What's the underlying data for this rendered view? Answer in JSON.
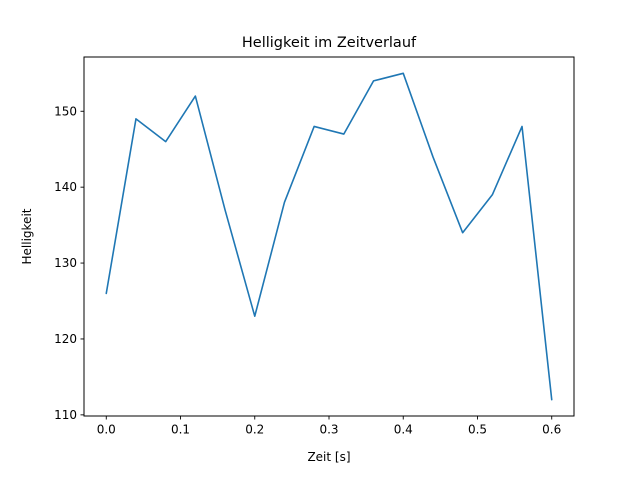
{
  "window": {
    "background": "#ffffff"
  },
  "chart_data": {
    "type": "line",
    "title": "Helligkeit im Zeitverlauf",
    "xlabel": "Zeit [s]",
    "ylabel": "Helligkeit",
    "x": [
      0.0,
      0.04,
      0.08,
      0.12,
      0.16,
      0.2,
      0.24,
      0.28,
      0.32,
      0.36,
      0.4,
      0.44,
      0.48,
      0.52,
      0.56,
      0.6
    ],
    "values": [
      126,
      149,
      146,
      152,
      137,
      123,
      138,
      148,
      147,
      154,
      155,
      144,
      134,
      139,
      148,
      112
    ],
    "xticks": [
      0.0,
      0.1,
      0.2,
      0.3,
      0.4,
      0.5,
      0.6
    ],
    "xtick_labels": [
      "0.0",
      "0.1",
      "0.2",
      "0.3",
      "0.4",
      "0.5",
      "0.6"
    ],
    "yticks": [
      110,
      120,
      130,
      140,
      150
    ],
    "ytick_labels": [
      "110",
      "120",
      "130",
      "140",
      "150"
    ],
    "xlim": [
      -0.03,
      0.63
    ],
    "ylim": [
      109.85,
      157.15
    ],
    "grid": false,
    "legend_position": "none",
    "line_color": "#1f77b4",
    "axis_color": "#000000",
    "line_width": 1.6
  }
}
